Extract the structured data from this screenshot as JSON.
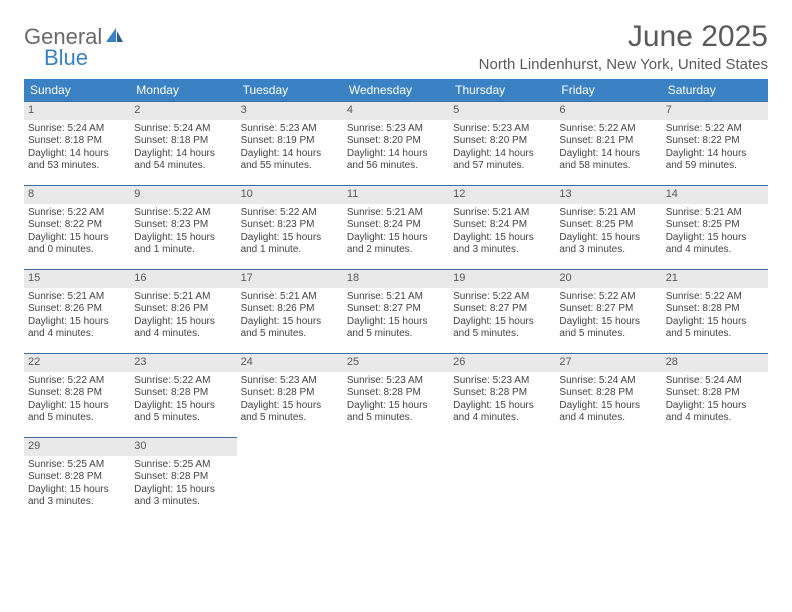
{
  "brand": {
    "part1": "General",
    "part2": "Blue"
  },
  "title": "June 2025",
  "location": "North Lindenhurst, New York, United States",
  "colors": {
    "header_bg": "#3b82c4",
    "header_text": "#ffffff",
    "daynum_bg": "#e9e9e9",
    "daynum_text": "#5a5a5a",
    "rule": "#3b6fa0",
    "body_text": "#444444",
    "title_text": "#5a5a5a",
    "background": "#ffffff"
  },
  "typography": {
    "title_size_pt": 22,
    "location_size_pt": 11,
    "dayhead_size_pt": 9,
    "cell_size_pt": 7.5,
    "font_family": "Arial"
  },
  "day_headers": [
    "Sunday",
    "Monday",
    "Tuesday",
    "Wednesday",
    "Thursday",
    "Friday",
    "Saturday"
  ],
  "days": [
    {
      "n": "1",
      "sunrise": "5:24 AM",
      "sunset": "8:18 PM",
      "daylight": "14 hours and 53 minutes."
    },
    {
      "n": "2",
      "sunrise": "5:24 AM",
      "sunset": "8:18 PM",
      "daylight": "14 hours and 54 minutes."
    },
    {
      "n": "3",
      "sunrise": "5:23 AM",
      "sunset": "8:19 PM",
      "daylight": "14 hours and 55 minutes."
    },
    {
      "n": "4",
      "sunrise": "5:23 AM",
      "sunset": "8:20 PM",
      "daylight": "14 hours and 56 minutes."
    },
    {
      "n": "5",
      "sunrise": "5:23 AM",
      "sunset": "8:20 PM",
      "daylight": "14 hours and 57 minutes."
    },
    {
      "n": "6",
      "sunrise": "5:22 AM",
      "sunset": "8:21 PM",
      "daylight": "14 hours and 58 minutes."
    },
    {
      "n": "7",
      "sunrise": "5:22 AM",
      "sunset": "8:22 PM",
      "daylight": "14 hours and 59 minutes."
    },
    {
      "n": "8",
      "sunrise": "5:22 AM",
      "sunset": "8:22 PM",
      "daylight": "15 hours and 0 minutes."
    },
    {
      "n": "9",
      "sunrise": "5:22 AM",
      "sunset": "8:23 PM",
      "daylight": "15 hours and 1 minute."
    },
    {
      "n": "10",
      "sunrise": "5:22 AM",
      "sunset": "8:23 PM",
      "daylight": "15 hours and 1 minute."
    },
    {
      "n": "11",
      "sunrise": "5:21 AM",
      "sunset": "8:24 PM",
      "daylight": "15 hours and 2 minutes."
    },
    {
      "n": "12",
      "sunrise": "5:21 AM",
      "sunset": "8:24 PM",
      "daylight": "15 hours and 3 minutes."
    },
    {
      "n": "13",
      "sunrise": "5:21 AM",
      "sunset": "8:25 PM",
      "daylight": "15 hours and 3 minutes."
    },
    {
      "n": "14",
      "sunrise": "5:21 AM",
      "sunset": "8:25 PM",
      "daylight": "15 hours and 4 minutes."
    },
    {
      "n": "15",
      "sunrise": "5:21 AM",
      "sunset": "8:26 PM",
      "daylight": "15 hours and 4 minutes."
    },
    {
      "n": "16",
      "sunrise": "5:21 AM",
      "sunset": "8:26 PM",
      "daylight": "15 hours and 4 minutes."
    },
    {
      "n": "17",
      "sunrise": "5:21 AM",
      "sunset": "8:26 PM",
      "daylight": "15 hours and 5 minutes."
    },
    {
      "n": "18",
      "sunrise": "5:21 AM",
      "sunset": "8:27 PM",
      "daylight": "15 hours and 5 minutes."
    },
    {
      "n": "19",
      "sunrise": "5:22 AM",
      "sunset": "8:27 PM",
      "daylight": "15 hours and 5 minutes."
    },
    {
      "n": "20",
      "sunrise": "5:22 AM",
      "sunset": "8:27 PM",
      "daylight": "15 hours and 5 minutes."
    },
    {
      "n": "21",
      "sunrise": "5:22 AM",
      "sunset": "8:28 PM",
      "daylight": "15 hours and 5 minutes."
    },
    {
      "n": "22",
      "sunrise": "5:22 AM",
      "sunset": "8:28 PM",
      "daylight": "15 hours and 5 minutes."
    },
    {
      "n": "23",
      "sunrise": "5:22 AM",
      "sunset": "8:28 PM",
      "daylight": "15 hours and 5 minutes."
    },
    {
      "n": "24",
      "sunrise": "5:23 AM",
      "sunset": "8:28 PM",
      "daylight": "15 hours and 5 minutes."
    },
    {
      "n": "25",
      "sunrise": "5:23 AM",
      "sunset": "8:28 PM",
      "daylight": "15 hours and 5 minutes."
    },
    {
      "n": "26",
      "sunrise": "5:23 AM",
      "sunset": "8:28 PM",
      "daylight": "15 hours and 4 minutes."
    },
    {
      "n": "27",
      "sunrise": "5:24 AM",
      "sunset": "8:28 PM",
      "daylight": "15 hours and 4 minutes."
    },
    {
      "n": "28",
      "sunrise": "5:24 AM",
      "sunset": "8:28 PM",
      "daylight": "15 hours and 4 minutes."
    },
    {
      "n": "29",
      "sunrise": "5:25 AM",
      "sunset": "8:28 PM",
      "daylight": "15 hours and 3 minutes."
    },
    {
      "n": "30",
      "sunrise": "5:25 AM",
      "sunset": "8:28 PM",
      "daylight": "15 hours and 3 minutes."
    }
  ],
  "labels": {
    "sunrise": "Sunrise: ",
    "sunset": "Sunset: ",
    "daylight": "Daylight: "
  }
}
